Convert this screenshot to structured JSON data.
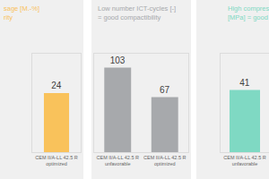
{
  "chart_data": [
    {
      "type": "bar",
      "title": "sage [M.-%]\nrity",
      "categories": [
        "CEM II/A-LL 42.5 R\noptimized"
      ],
      "values": [
        24
      ],
      "color": "#f9c25b",
      "ylim": [
        0,
        40
      ],
      "data_labels": true,
      "tick_labels": "x",
      "grid": false
    },
    {
      "type": "bar",
      "title": "Low number ICT-cycles [-]\n= good compactibility",
      "categories": [
        "CEM II/A-LL 42.5 R\nunfavorable",
        "CEM II/A-LL 42.5 R\noptimized"
      ],
      "values": [
        103,
        67
      ],
      "color": "#a7a9ac",
      "ylim": [
        0,
        120
      ],
      "data_labels": true,
      "tick_labels": "x",
      "grid": false
    },
    {
      "type": "bar",
      "title": "High compressi\n[MPa] = good h",
      "categories": [
        "CEM II/A-LL 42.5 R\nunfavorable"
      ],
      "values": [
        41
      ],
      "color": "#7fd9c3",
      "ylim": [
        0,
        65
      ],
      "data_labels": true,
      "tick_labels": "x",
      "grid": false
    }
  ]
}
